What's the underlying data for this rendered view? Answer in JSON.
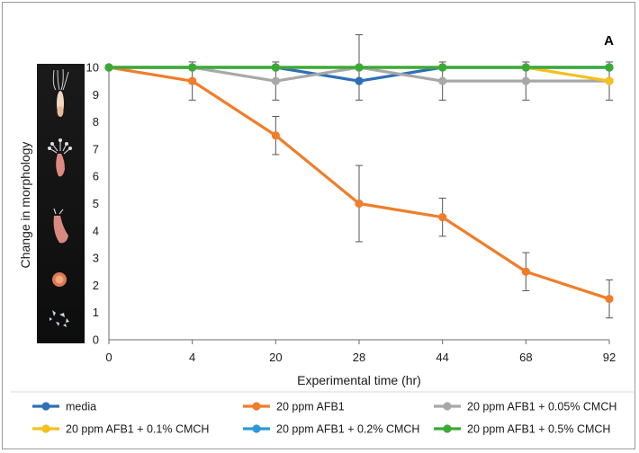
{
  "chart_data": {
    "type": "line",
    "panel_label": "A",
    "xlabel": "Experimental time (hr)",
    "ylabel": "Change in morphology",
    "categories": [
      "0",
      "4",
      "20",
      "28",
      "44",
      "68",
      "92"
    ],
    "ylim": [
      0,
      10
    ],
    "yticks": [
      "0",
      "1",
      "2",
      "3",
      "4",
      "5",
      "6",
      "7",
      "8",
      "9",
      "10"
    ],
    "grid": false,
    "legend_position": "bottom",
    "inset_image": "hydra morphology stages photo strip",
    "series": [
      {
        "name": "media",
        "color": "#2e6fb7",
        "values": [
          10,
          10,
          10,
          9.5,
          10,
          10,
          10
        ]
      },
      {
        "name": "20 ppm AFB1",
        "color": "#f07d2a",
        "values": [
          10,
          9.5,
          7.5,
          5,
          4.5,
          2.5,
          1.5
        ],
        "error": [
          0,
          0.7,
          0.7,
          1.4,
          0.7,
          0.7,
          0.7
        ]
      },
      {
        "name": "20 ppm AFB1 + 0.05% CMCH",
        "color": "#a8a8a8",
        "values": [
          10,
          10,
          9.5,
          10,
          9.5,
          9.5,
          9.5
        ],
        "error": [
          0,
          0,
          0.7,
          1.2,
          0.7,
          0.7,
          0.7
        ]
      },
      {
        "name": "20 ppm AFB1 + 0.1% CMCH",
        "color": "#f5c01a",
        "values": [
          10,
          10,
          10,
          10,
          10,
          10,
          9.5
        ]
      },
      {
        "name": "20 ppm AFB1 + 0.2% CMCH",
        "color": "#2c9ad6",
        "values": [
          10,
          10,
          10,
          10,
          10,
          10,
          10
        ]
      },
      {
        "name": "20 ppm AFB1 + 0.5% CMCH",
        "color": "#3aaa35",
        "values": [
          10,
          10,
          10,
          10,
          10,
          10,
          10
        ]
      }
    ]
  }
}
